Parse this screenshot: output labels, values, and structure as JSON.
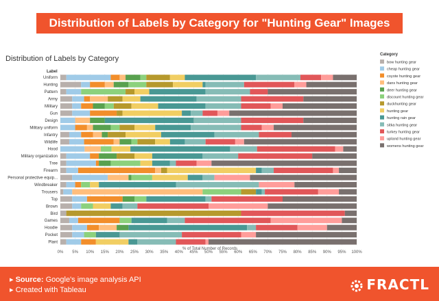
{
  "banner": {
    "title": "Distribution of Labels by Category for \"Hunting Gear\" Images"
  },
  "footer": {
    "source_label": "Source:",
    "source_text": "Google's image analysis API",
    "tool_text": "Created with Tableau",
    "brand": "FRACTL"
  },
  "chart_data": {
    "type": "bar",
    "orientation": "horizontal",
    "stacked": true,
    "normalized": true,
    "title": "Distribution of Labels by Category",
    "ylabel": "Label",
    "xlabel": "% of Total Number of Records",
    "xlim": [
      0,
      100
    ],
    "xticks": [
      "0%",
      "5%",
      "10%",
      "15%",
      "20%",
      "25%",
      "30%",
      "35%",
      "40%",
      "45%",
      "50%",
      "55%",
      "60%",
      "65%",
      "70%",
      "75%",
      "80%",
      "85%",
      "90%",
      "95%",
      "100%"
    ],
    "legend": {
      "title": "Category",
      "position": "right"
    },
    "categories": [
      "Uniform",
      "Hunting",
      "Pattern",
      "Army",
      "Military",
      "Gun",
      "Design",
      "Military uniform",
      "Infantry",
      "Wildlife",
      "Hood",
      "Military organization",
      "Tree",
      "Firearm",
      "Personal protective equip...",
      "Windbreaker",
      "Trousers",
      "Top",
      "Brown",
      "Bird",
      "Games",
      "Hoodie",
      "Pocket",
      "Plant"
    ],
    "series": [
      {
        "name": "bow hunting gear",
        "color": "#b8b0ac",
        "values": [
          2,
          7,
          2,
          4,
          4,
          4,
          0,
          0,
          3,
          3,
          0,
          2,
          2,
          2,
          4,
          2,
          1,
          4,
          4,
          2,
          3,
          4,
          4,
          2
        ]
      },
      {
        "name": "cheap hunting gear",
        "color": "#a0cbe8",
        "values": [
          15,
          3,
          5,
          4,
          3,
          6,
          5,
          5,
          4,
          5,
          9,
          8,
          10,
          4,
          12,
          3,
          3,
          5,
          3,
          0,
          3,
          5,
          4,
          5
        ]
      },
      {
        "name": "coyote hunting gear",
        "color": "#f28e2b",
        "values": [
          3,
          5,
          0,
          2,
          4,
          9,
          0,
          4,
          4,
          10,
          0,
          3,
          1,
          26,
          0,
          2,
          0,
          12,
          0,
          0,
          14,
          4,
          0,
          5
        ]
      },
      {
        "name": "dans hunting gear",
        "color": "#ffbe7d",
        "values": [
          2,
          3,
          0,
          6,
          0,
          0,
          5,
          2,
          3,
          2,
          6,
          0,
          0,
          2,
          7,
          0,
          44,
          0,
          0,
          0,
          0,
          6,
          0,
          0
        ]
      },
      {
        "name": "deer hunting gear",
        "color": "#59a14f",
        "values": [
          5,
          5,
          0,
          0,
          4,
          0,
          5,
          6,
          2,
          4,
          0,
          6,
          4,
          0,
          1,
          0,
          0,
          4,
          0,
          0,
          0,
          4,
          0,
          0
        ]
      },
      {
        "name": "discount hunting gear",
        "color": "#8cd17d",
        "values": [
          2,
          6,
          15,
          0,
          3,
          0,
          0,
          3,
          0,
          2,
          4,
          0,
          10,
          0,
          7,
          3,
          13,
          4,
          4,
          0,
          4,
          0,
          4,
          0
        ]
      },
      {
        "name": "duckhunting gear",
        "color": "#b6992d",
        "values": [
          8,
          9,
          3,
          5,
          6,
          2,
          0,
          5,
          6,
          6,
          0,
          6,
          0,
          2,
          0,
          0,
          5,
          0,
          0,
          59,
          0,
          0,
          0,
          0
        ]
      },
      {
        "name": "hunting gear",
        "color": "#f1ce63",
        "values": [
          5,
          10,
          5,
          6,
          9,
          20,
          0,
          7,
          12,
          5,
          7,
          6,
          4,
          30,
          12,
          3,
          0,
          0,
          6,
          0,
          0,
          0,
          0,
          11
        ]
      },
      {
        "name": "hunting rain gear",
        "color": "#499894",
        "values": [
          24,
          1,
          19,
          19,
          16,
          3,
          30,
          12,
          18,
          5,
          37,
          17,
          6,
          2,
          5,
          26,
          2,
          20,
          4,
          0,
          12,
          40,
          8,
          3
        ]
      },
      {
        "name": "sitka hunting gear",
        "color": "#86bcb6",
        "values": [
          15,
          13,
          15,
          15,
          12,
          4,
          16,
          17,
          15,
          7,
          10,
          12,
          2,
          4,
          4,
          28,
          1,
          2,
          5,
          0,
          6,
          3,
          21,
          13
        ]
      },
      {
        "name": "turkey hunting gear",
        "color": "#e15759",
        "values": [
          7,
          17,
          6,
          21,
          10,
          5,
          21,
          7,
          11,
          10,
          29,
          25,
          7,
          20,
          0,
          0,
          18,
          24,
          24,
          35,
          29,
          14,
          20,
          10
        ]
      },
      {
        "name": "upland hunting gear",
        "color": "#ff9d9a",
        "values": [
          4,
          4,
          0,
          0,
          4,
          4,
          0,
          4,
          0,
          3,
          3,
          0,
          5,
          2,
          12,
          12,
          7,
          0,
          20,
          0,
          24,
          10,
          5,
          1
        ]
      },
      {
        "name": "womens hunting gear",
        "color": "#79706e",
        "values": [
          8,
          17,
          30,
          18,
          25,
          43,
          18,
          28,
          22,
          38,
          5,
          15,
          49,
          6,
          36,
          21,
          6,
          25,
          30,
          4,
          5,
          10,
          34,
          50
        ]
      }
    ]
  }
}
